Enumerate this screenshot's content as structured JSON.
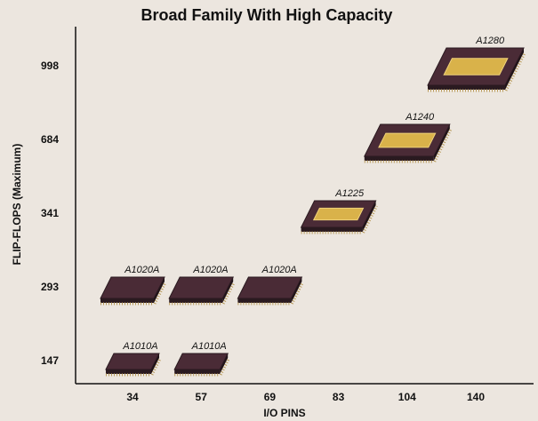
{
  "chart_data": {
    "type": "scatter",
    "title": "Broad Family With High Capacity",
    "x_label": "I/O PINS",
    "y_label": "FLIP-FLOPS (Maximum)",
    "scale": "ordinal",
    "xticks": [
      34,
      57,
      69,
      83,
      104,
      140
    ],
    "yticks": [
      147,
      293,
      341,
      684,
      998
    ],
    "color": "#4a2b36",
    "points": [
      {
        "label": "A1010A",
        "x": 34,
        "y": 147
      },
      {
        "label": "A1010A",
        "x": 57,
        "y": 147
      },
      {
        "label": "A1020A",
        "x": 34,
        "y": 293
      },
      {
        "label": "A1020A",
        "x": 57,
        "y": 293
      },
      {
        "label": "A1020A",
        "x": 69,
        "y": 293
      },
      {
        "label": "A1225",
        "x": 83,
        "y": 341
      },
      {
        "label": "A1240",
        "x": 104,
        "y": 684
      },
      {
        "label": "A1280",
        "x": 140,
        "y": 998
      }
    ]
  }
}
